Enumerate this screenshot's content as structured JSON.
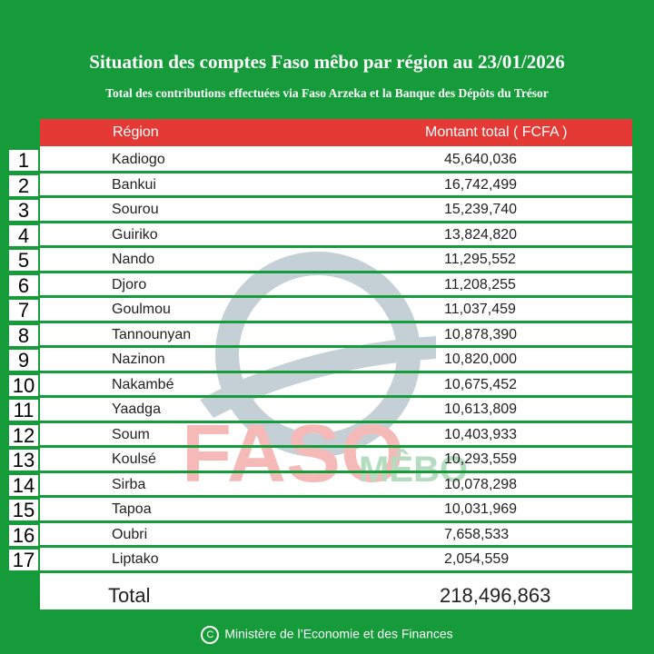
{
  "header": {
    "title": "Situation des comptes Faso mêbo par région au 23/01/2026",
    "subtitle": "Total des contributions effectuées via Faso Arzeka et la Banque des Dépôts du Trésor"
  },
  "table": {
    "col_region": "Région",
    "col_amount": "Montant total ( FCFA )",
    "rows": [
      {
        "rank": "1",
        "region": "Kadiogo",
        "amount": "45,640,036"
      },
      {
        "rank": "2",
        "region": "Bankui",
        "amount": "16,742,499"
      },
      {
        "rank": "3",
        "region": "Sourou",
        "amount": "15,239,740"
      },
      {
        "rank": "4",
        "region": "Guiriko",
        "amount": "13,824,820"
      },
      {
        "rank": "5",
        "region": "Nando",
        "amount": "11,295,552"
      },
      {
        "rank": "6",
        "region": "Djoro",
        "amount": "11,208,255"
      },
      {
        "rank": "7",
        "region": "Goulmou",
        "amount": "11,037,459"
      },
      {
        "rank": "8",
        "region": "Tannounyan",
        "amount": "10,878,390"
      },
      {
        "rank": "9",
        "region": "Nazinon",
        "amount": "10,820,000"
      },
      {
        "rank": "10",
        "region": "Nakambé",
        "amount": "10,675,452"
      },
      {
        "rank": "11",
        "region": "Yaadga",
        "amount": "10,613,809"
      },
      {
        "rank": "12",
        "region": "Soum",
        "amount": "10,403,933"
      },
      {
        "rank": "13",
        "region": "Koulsé",
        "amount": "10,293,559"
      },
      {
        "rank": "14",
        "region": "Sirba",
        "amount": "10,078,298"
      },
      {
        "rank": "15",
        "region": "Tapoa",
        "amount": "10,031,969"
      },
      {
        "rank": "16",
        "region": "Oubri",
        "amount": "7,658,533"
      },
      {
        "rank": "17",
        "region": "Liptako",
        "amount": "2,054,559"
      }
    ],
    "total_label": "Total",
    "total_amount": "218,496,863"
  },
  "watermark": {
    "logo_text": "FASO",
    "logo_text2": "MÊBO"
  },
  "footer": {
    "copyright_symbol": "C",
    "text": "Ministère de l’Economie et des Finances"
  },
  "colors": {
    "background": "#159b3a",
    "header_bar": "#e53935",
    "accent_red": "#e53935"
  }
}
